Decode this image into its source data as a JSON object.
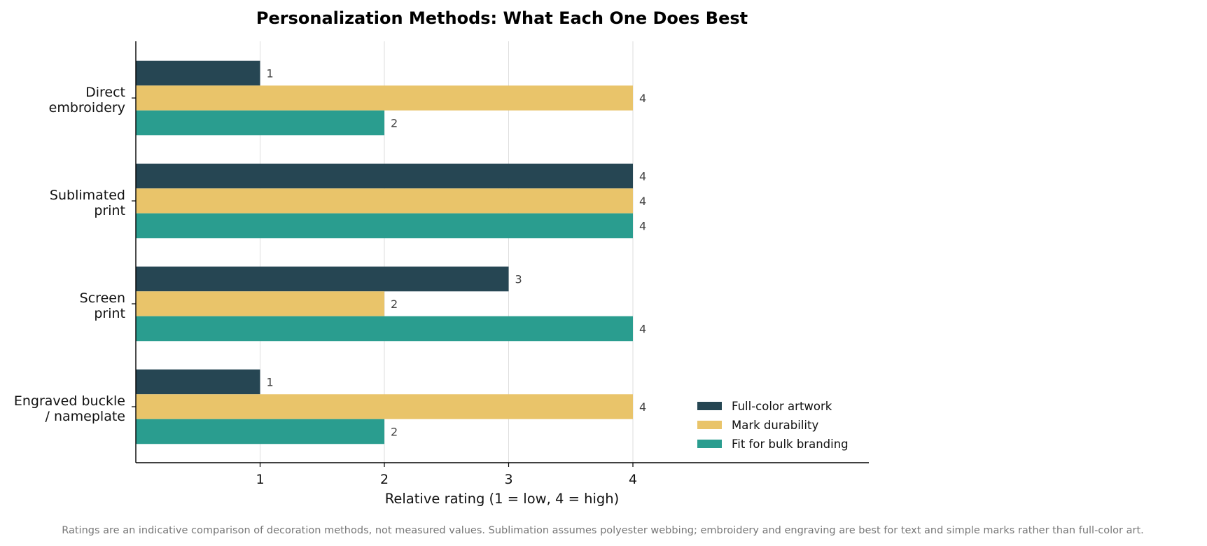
{
  "chart_data": {
    "type": "bar",
    "orientation": "horizontal",
    "title": "Personalization Methods: What Each One Does Best",
    "xlabel": "Relative rating (1 = low, 4 = high)",
    "ylabel": "",
    "xlim": [
      0,
      5.9
    ],
    "xticks": [
      "1",
      "2",
      "3",
      "4"
    ],
    "grid": "vertical",
    "legend_position": "bottom-right",
    "categories": [
      [
        "Direct",
        "embroidery"
      ],
      [
        "Sublimated",
        "print"
      ],
      [
        "Screen",
        "print"
      ],
      [
        "Engraved buckle",
        "/ nameplate"
      ]
    ],
    "series": [
      {
        "name": "Full-color artwork",
        "color": "#264653",
        "values": [
          1,
          4,
          3,
          1
        ]
      },
      {
        "name": "Mark durability",
        "color": "#e9c46a",
        "values": [
          4,
          4,
          2,
          4
        ]
      },
      {
        "name": "Fit for bulk branding",
        "color": "#2a9d8f",
        "values": [
          2,
          4,
          4,
          2
        ]
      }
    ],
    "footnote": "Ratings are an indicative comparison of decoration methods, not measured values. Sublimation assumes polyester webbing; embroidery and engraving are best for text and simple marks rather than full-color art."
  }
}
